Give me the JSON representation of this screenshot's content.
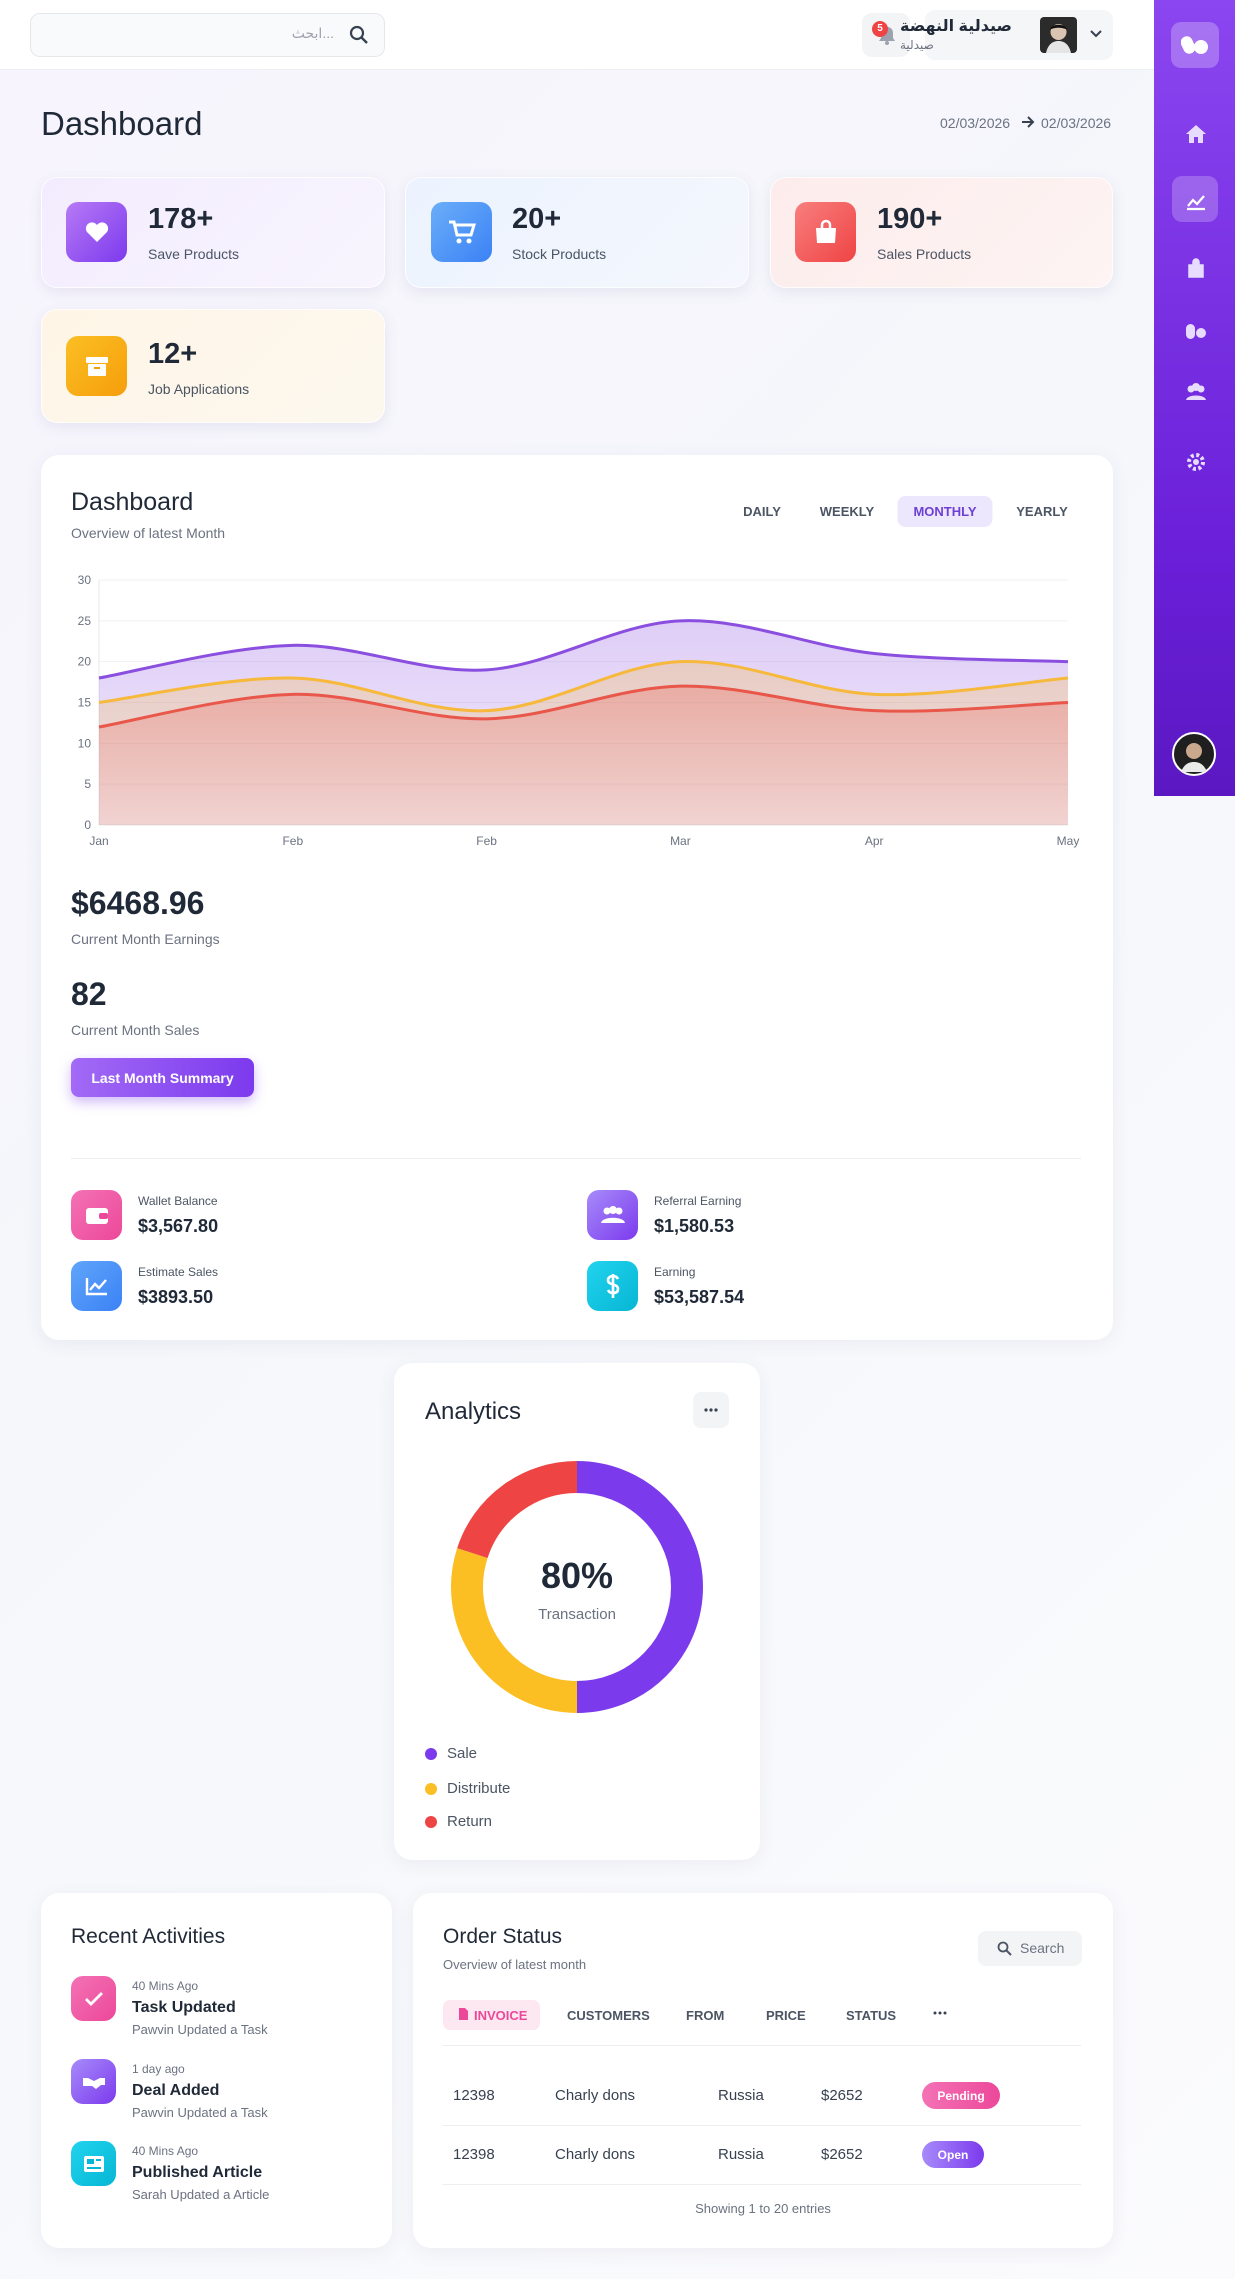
{
  "header": {
    "search_placeholder": "ابحث...",
    "notifications": 5,
    "user_name": "صيدلية النهضة",
    "user_role": "صيدلية"
  },
  "page": {
    "title": "Dashboard",
    "date_from": "02/03/2026",
    "date_to": "02/03/2026"
  },
  "stats": [
    {
      "value": "178+",
      "label": "Save Products"
    },
    {
      "value": "20+",
      "label": "Stock Products"
    },
    {
      "value": "190+",
      "label": "Sales Products"
    },
    {
      "value": "12+",
      "label": "Job Applications"
    }
  ],
  "overview": {
    "title": "Dashboard",
    "subtitle": "Overview of latest Month",
    "tabs": [
      "DAILY",
      "WEEKLY",
      "MONTHLY",
      "YEARLY"
    ],
    "active_tab": 2,
    "earnings": "$6468.96",
    "earnings_label": "Current Month Earnings",
    "sales": 82,
    "sales_label": "Current Month Sales",
    "button": "Last Month Summary",
    "mini_stats": [
      {
        "label": "Wallet Balance",
        "value": "$3,567.80"
      },
      {
        "label": "Referral Earning",
        "value": "$1,580.53"
      },
      {
        "label": "Estimate Sales",
        "value": "$3893.50"
      },
      {
        "label": "Earning",
        "value": "$53,587.54"
      }
    ]
  },
  "chart": {
    "type": "line",
    "grid": true,
    "categories": [
      "Jan",
      "Feb",
      "Feb",
      "Mar",
      "Apr",
      "May"
    ],
    "ylim": [
      0,
      30
    ],
    "yticks": [
      0,
      5,
      10,
      15,
      20,
      25,
      30
    ],
    "series": [
      {
        "color": "#8b4fe0",
        "values": [
          18,
          22,
          19,
          25,
          21,
          20
        ]
      },
      {
        "color": "#f6b93b",
        "values": [
          15,
          18,
          14,
          20,
          16,
          18
        ]
      },
      {
        "color": "#e9574a",
        "values": [
          12,
          16,
          13,
          17,
          14,
          15
        ]
      }
    ]
  },
  "analytics": {
    "title": "Analytics",
    "center_value": "80%",
    "center_label": "Transaction",
    "donut": {
      "type": "pie",
      "categories": [
        "Sale",
        "Distribute",
        "Return"
      ],
      "values": [
        50,
        30,
        20
      ],
      "colors": [
        "#7c3aed",
        "#fbbf24",
        "#ef4444"
      ]
    }
  },
  "activities": {
    "title": "Recent Activities",
    "items": [
      {
        "time": "40 Mins Ago",
        "title": "Task Updated",
        "detail": "Pawvin Updated a Task"
      },
      {
        "time": "1 day ago",
        "title": "Deal Added",
        "detail": "Pawvin Updated a Task"
      },
      {
        "time": "40 Mins Ago",
        "title": "Published Article",
        "detail": "Sarah Updated a Article"
      }
    ]
  },
  "orders": {
    "title": "Order Status",
    "subtitle": "Overview of latest month",
    "search": "Search",
    "columns": [
      "INVOICE",
      "CUSTOMERS",
      "FROM",
      "PRICE",
      "STATUS"
    ],
    "rows": [
      [
        "12398",
        "Charly dons",
        "Russia",
        "$2652",
        "Pending"
      ],
      [
        "12398",
        "Charly dons",
        "Russia",
        "$2652",
        "Open"
      ]
    ],
    "footer": "Showing 1 to 20 entries"
  }
}
